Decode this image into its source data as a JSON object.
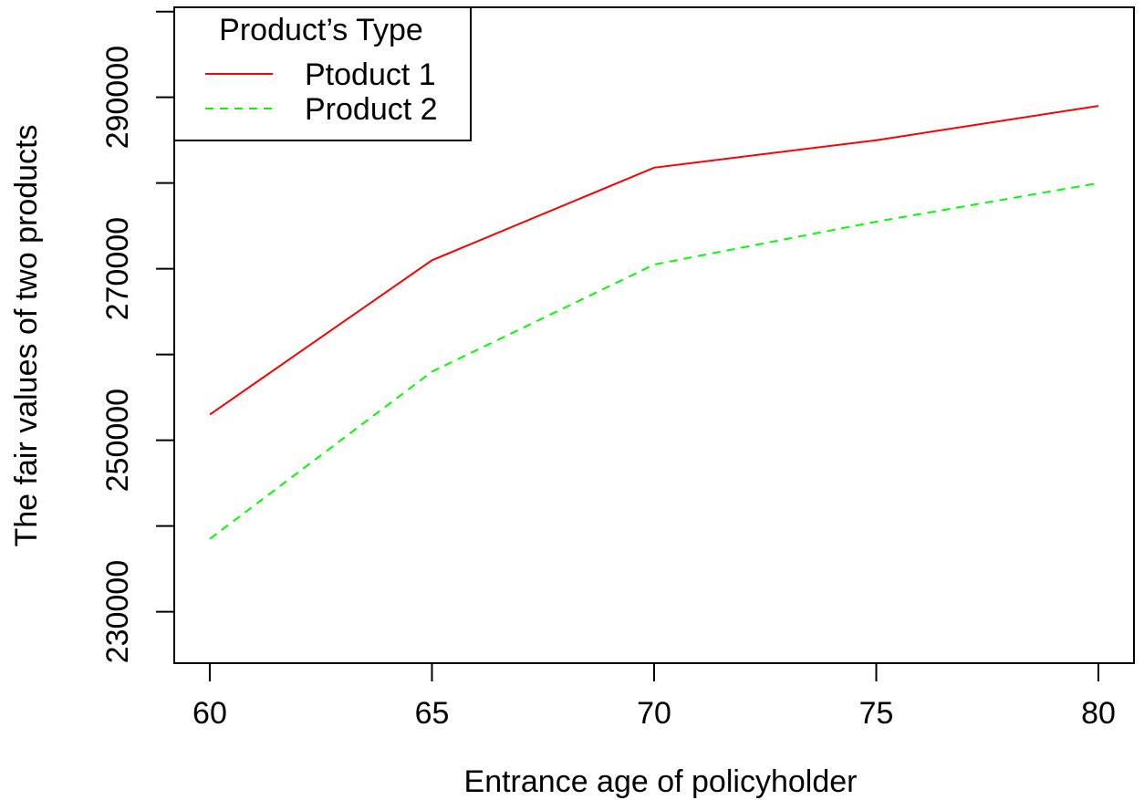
{
  "chart_data": {
    "type": "line",
    "title": "",
    "xlabel": "Entrance age of policyholder",
    "ylabel": "The fair values of two products",
    "x": [
      60,
      65,
      70,
      75,
      80
    ],
    "xlim": [
      59.2,
      80.8
    ],
    "ylim": [
      224000,
      300500
    ],
    "x_ticks": [
      60,
      65,
      70,
      75,
      80
    ],
    "y_ticks": [
      230000,
      240000,
      250000,
      260000,
      270000,
      280000,
      290000,
      300000
    ],
    "y_tick_labels": [
      "230000",
      "",
      "250000",
      "",
      "270000",
      "",
      "290000",
      ""
    ],
    "legend": {
      "title": "Product’s Type",
      "position": "top-left"
    },
    "series": [
      {
        "name": "Ptoduct 1",
        "values": [
          253000,
          271000,
          281800,
          285000,
          289000
        ],
        "color": "#ff0000",
        "line_style": "solid"
      },
      {
        "name": "Product 2",
        "values": [
          238500,
          258000,
          270500,
          275500,
          280000
        ],
        "color": "#00ff00",
        "line_style": "dashed"
      }
    ],
    "grid": false
  }
}
